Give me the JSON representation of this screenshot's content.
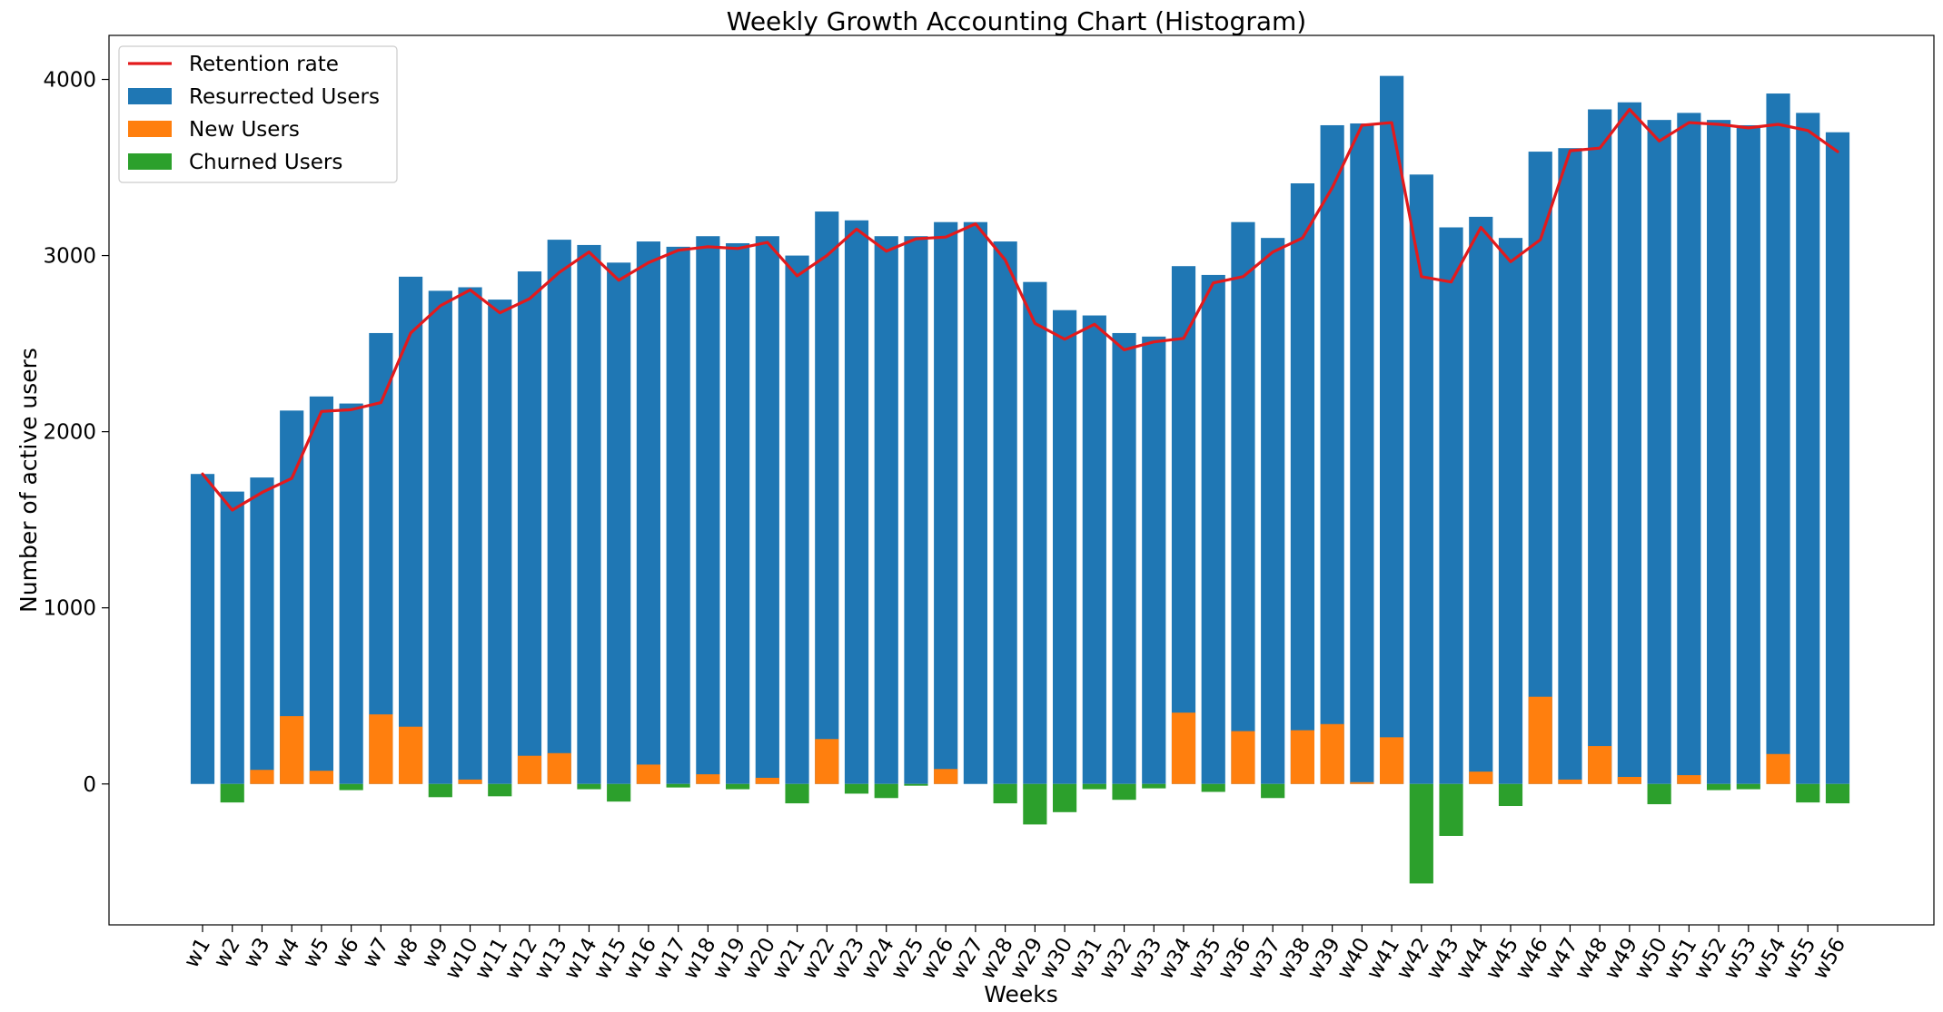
{
  "chart_data": {
    "type": "bar",
    "title": "Weekly Growth Accounting Chart (Histogram)",
    "xlabel": "Weeks",
    "ylabel": "Number of active users",
    "ylim": [
      -800,
      4250
    ],
    "yticks": [
      0,
      1000,
      2000,
      3000,
      4000
    ],
    "grid": false,
    "legend_position": "top-left",
    "categories": [
      "w1",
      "w2",
      "w3",
      "w4",
      "w5",
      "w6",
      "w7",
      "w8",
      "w9",
      "w10",
      "w11",
      "w12",
      "w13",
      "w14",
      "w15",
      "w16",
      "w17",
      "w18",
      "w19",
      "w20",
      "w21",
      "w22",
      "w23",
      "w24",
      "w25",
      "w26",
      "w27",
      "w28",
      "w29",
      "w30",
      "w31",
      "w32",
      "w33",
      "w34",
      "w35",
      "w36",
      "w37",
      "w38",
      "w39",
      "w40",
      "w41",
      "w42",
      "w43",
      "w44",
      "w45",
      "w46",
      "w47",
      "w48",
      "w49",
      "w50",
      "w51",
      "w52",
      "w53",
      "w54",
      "w55",
      "w56"
    ],
    "series": [
      {
        "name": "Resurrected Users",
        "type": "bar",
        "color": "#1f77b4",
        "values": [
          1760,
          1660,
          1740,
          2120,
          2200,
          2160,
          2560,
          2880,
          2800,
          2820,
          2750,
          2910,
          3090,
          3060,
          2960,
          3080,
          3050,
          3110,
          3070,
          3110,
          3000,
          3250,
          3200,
          3110,
          3110,
          3190,
          3190,
          3080,
          2850,
          2690,
          2660,
          2560,
          2540,
          2940,
          2890,
          3190,
          3100,
          3410,
          3740,
          3750,
          4020,
          3460,
          3160,
          3220,
          3100,
          3590,
          3610,
          3830,
          3870,
          3770,
          3810,
          3770,
          3740,
          3920,
          3810,
          3700
        ]
      },
      {
        "name": "New Users",
        "type": "bar",
        "color": "#ff7f0e",
        "values": [
          0,
          0,
          80,
          385,
          75,
          0,
          395,
          325,
          0,
          25,
          0,
          160,
          175,
          0,
          0,
          110,
          0,
          55,
          0,
          35,
          0,
          255,
          0,
          0,
          0,
          85,
          0,
          0,
          0,
          0,
          0,
          0,
          0,
          405,
          0,
          300,
          0,
          305,
          340,
          10,
          265,
          0,
          0,
          70,
          0,
          495,
          25,
          215,
          40,
          0,
          50,
          0,
          0,
          170,
          0,
          0
        ]
      },
      {
        "name": "Churned Users",
        "type": "bar",
        "color": "#2ca02c",
        "values": [
          0,
          -105,
          0,
          0,
          0,
          -35,
          0,
          0,
          -75,
          0,
          -70,
          0,
          0,
          -30,
          -100,
          0,
          -20,
          0,
          -30,
          0,
          -110,
          0,
          -55,
          -80,
          -10,
          0,
          0,
          -110,
          -230,
          -160,
          -30,
          -90,
          -25,
          0,
          -45,
          0,
          -80,
          0,
          0,
          0,
          0,
          -565,
          -295,
          0,
          -125,
          0,
          0,
          0,
          0,
          -115,
          0,
          -35,
          -30,
          0,
          -105,
          -110
        ]
      },
      {
        "name": "Retention rate",
        "type": "line",
        "color": "#e31a1c",
        "values": [
          1760,
          1555,
          1655,
          1735,
          2115,
          2125,
          2165,
          2560,
          2715,
          2805,
          2675,
          2755,
          2905,
          3020,
          2860,
          2960,
          3030,
          3050,
          3040,
          3075,
          2885,
          3000,
          3150,
          3025,
          3095,
          3105,
          3180,
          2975,
          2615,
          2525,
          2610,
          2465,
          2510,
          2530,
          2845,
          2880,
          3020,
          3100,
          3385,
          3740,
          3755,
          2880,
          2850,
          3160,
          2965,
          3090,
          3595,
          3610,
          3830,
          3650,
          3755,
          3745,
          3725,
          3745,
          3710,
          3590
        ]
      }
    ]
  }
}
